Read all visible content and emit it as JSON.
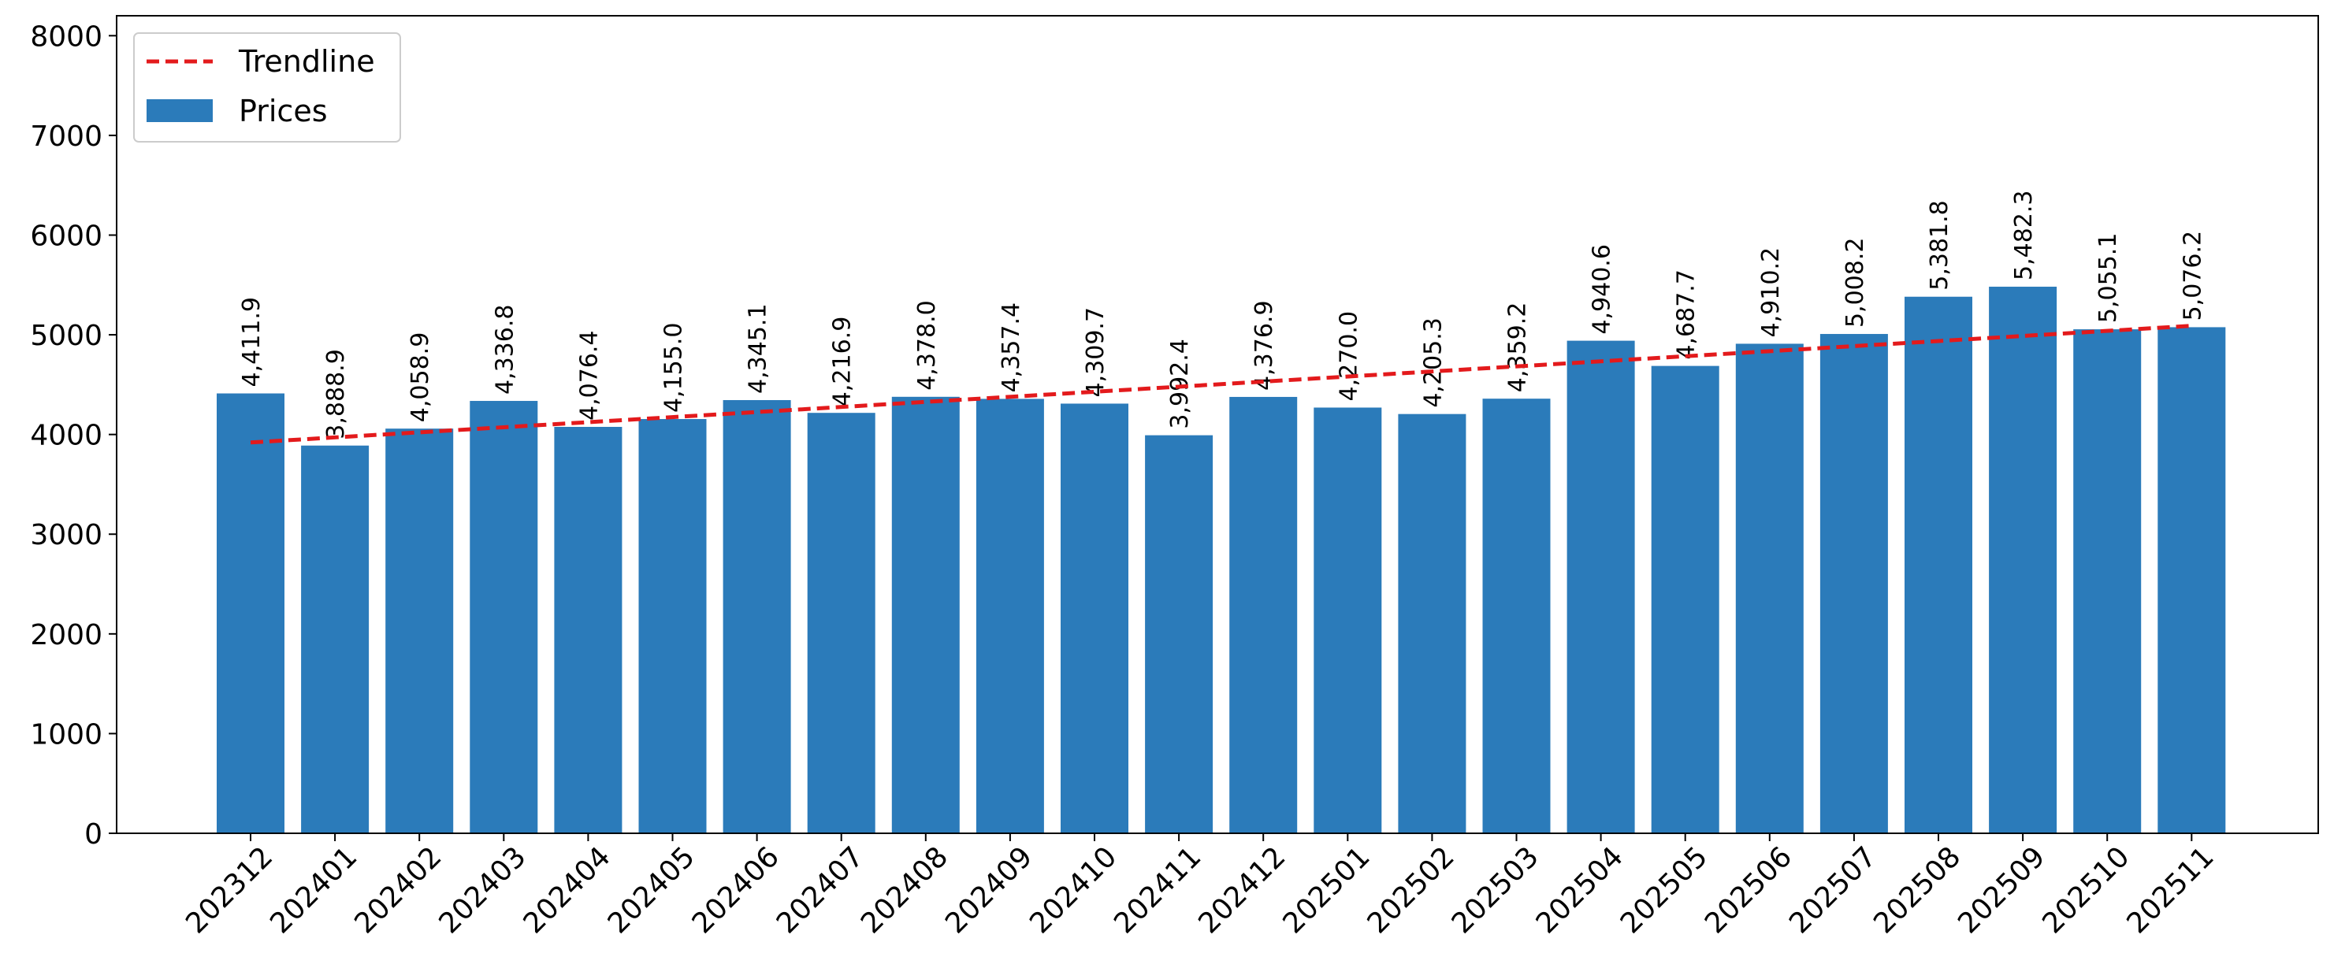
{
  "chart_data": {
    "type": "bar",
    "title": "",
    "xlabel": "",
    "ylabel": "",
    "categories": [
      "202312",
      "202401",
      "202402",
      "202403",
      "202404",
      "202405",
      "202406",
      "202407",
      "202408",
      "202409",
      "202410",
      "202411",
      "202412",
      "202501",
      "202502",
      "202503",
      "202504",
      "202505",
      "202506",
      "202507",
      "202508",
      "202509",
      "202510",
      "202511"
    ],
    "series": [
      {
        "name": "Prices",
        "color": "#2b7bba",
        "values": [
          4411.9,
          3888.9,
          4058.9,
          4336.8,
          4076.4,
          4155.0,
          4345.1,
          4216.9,
          4378.0,
          4357.4,
          4309.7,
          3992.4,
          4376.9,
          4270.0,
          4205.3,
          4359.2,
          4940.6,
          4687.7,
          4910.2,
          5008.2,
          5381.8,
          5482.3,
          5055.1,
          5076.2
        ],
        "data_labels": [
          "4,411.9",
          "3,888.9",
          "4,058.9",
          "4,336.8",
          "4,076.4",
          "4,155.0",
          "4,345.1",
          "4,216.9",
          "4,378.0",
          "4,357.4",
          "4,309.7",
          "3,992.4",
          "4,376.9",
          "4,270.0",
          "4,205.3",
          "4,359.2",
          "4,940.6",
          "4,687.7",
          "4,910.2",
          "5,008.2",
          "5,381.8",
          "5,482.3",
          "5,055.1",
          "5,076.2"
        ]
      }
    ],
    "trendline": {
      "name": "Trendline",
      "color": "#e31a1c",
      "style": "dashed",
      "start_value": 3920,
      "end_value": 5090
    },
    "ylim": [
      0,
      8200
    ],
    "y_ticks": [
      0,
      1000,
      2000,
      3000,
      4000,
      5000,
      6000,
      7000,
      8000
    ],
    "x_tick_rotation": -45,
    "grid": false,
    "legend_position": "top-left",
    "legend": [
      {
        "label": "Trendline",
        "kind": "dashed-line",
        "color": "#e31a1c"
      },
      {
        "label": "Prices",
        "kind": "patch",
        "color": "#2b7bba"
      }
    ]
  }
}
